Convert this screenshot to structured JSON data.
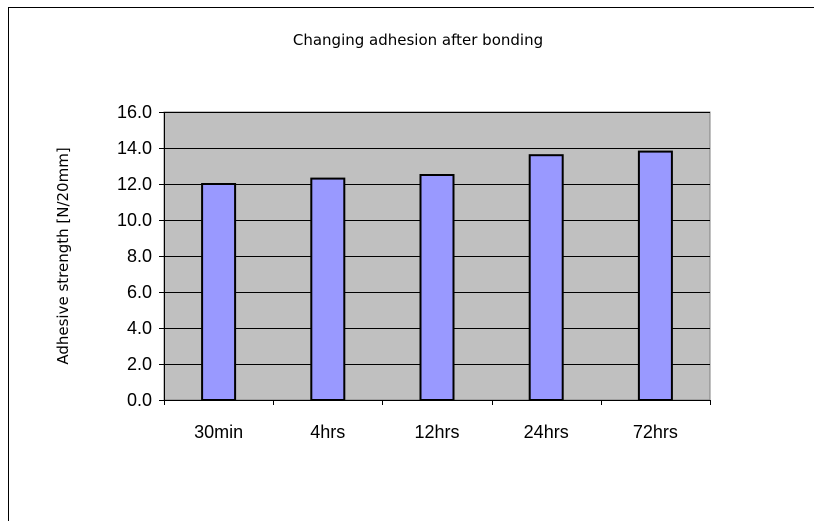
{
  "chart_data": {
    "type": "bar",
    "title": "Changing adhesion after bonding",
    "xlabel": "",
    "ylabel": "Adhesive strength [N/20mm]",
    "categories": [
      "30min",
      "4hrs",
      "12hrs",
      "24hrs",
      "72hrs"
    ],
    "values": [
      12.0,
      12.3,
      12.5,
      13.6,
      13.8
    ],
    "ylim": [
      0,
      16
    ],
    "ytick_step": 2,
    "ytick_labels": [
      "0.0",
      "2.0",
      "4.0",
      "6.0",
      "8.0",
      "10.0",
      "12.0",
      "14.0",
      "16.0"
    ],
    "grid": true,
    "legend": "none",
    "colors": {
      "bar_fill": "#9999ff",
      "bar_stroke": "#000000",
      "plot_background": "#c0c0c0",
      "gridline": "#000000",
      "page_background": "#ffffff"
    }
  }
}
